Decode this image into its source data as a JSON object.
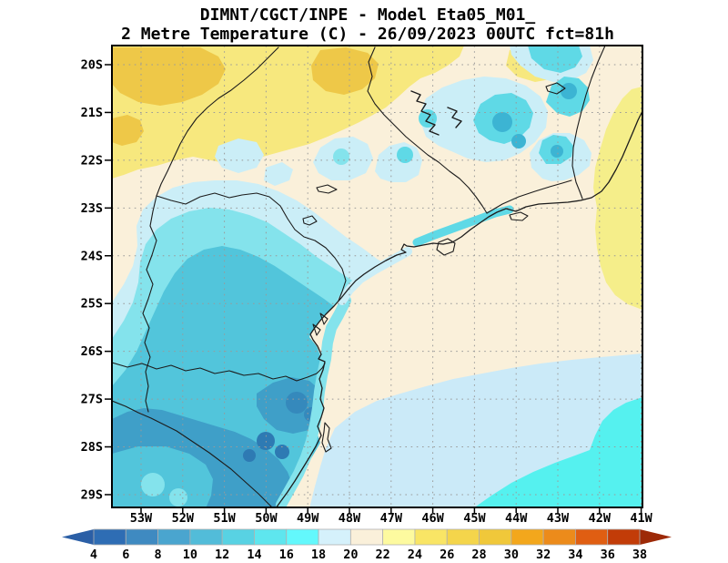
{
  "title": {
    "line1": "DIMNT/CGCT/INPE -  Model Eta05_M01_",
    "line2": "2 Metre Temperature (C) -  26/09/2023 00UTC fct=81h"
  },
  "map": {
    "lat_labels": [
      "20S",
      "21S",
      "22S",
      "23S",
      "24S",
      "25S",
      "26S",
      "27S",
      "28S",
      "29S"
    ],
    "lon_labels": [
      "53W",
      "52W",
      "51W",
      "50W",
      "49W",
      "48W",
      "47W",
      "46W",
      "45W",
      "44W",
      "43W",
      "42W",
      "41W"
    ],
    "grid_color": "#9a9a9a",
    "line_color": "#1c1c1c"
  },
  "palette": {
    "gold": "#eec848",
    "yellow": "#f7e87e",
    "yellow_right": "#f5ee8a",
    "cream": "#faf0da",
    "pale_blue": "#cbeef7",
    "cyan_light": "#84e3ec",
    "cyan": "#5fd9e6",
    "teal": "#52c5db",
    "teal_deep": "#3f9fc8",
    "teal_spot": "#3cb4d3",
    "blue_mid": "#3589bc",
    "blue_dark": "#2e7ab3",
    "ocean_pale": "#cbeaf8",
    "ocean_cyan": "#55f1ef"
  },
  "colorbar": {
    "tick_labels": [
      "4",
      "6",
      "8",
      "10",
      "12",
      "14",
      "16",
      "18",
      "20",
      "22",
      "24",
      "26",
      "28",
      "30",
      "32",
      "34",
      "36",
      "38"
    ],
    "cell_colors": [
      "#2e6db4",
      "#3f8ac1",
      "#4aa5cf",
      "#52bcd9",
      "#58d2e3",
      "#5ee6ee",
      "#63f8fc",
      "#d5f1fb",
      "#faf0da",
      "#fdfa9f",
      "#f9e565",
      "#f4d54b",
      "#f0c83a",
      "#f3a71c",
      "#ec8b1b",
      "#e05e12",
      "#c23c08"
    ],
    "left_arrow_color": "#2b5fa6",
    "right_arrow_color": "#9d2a08"
  }
}
